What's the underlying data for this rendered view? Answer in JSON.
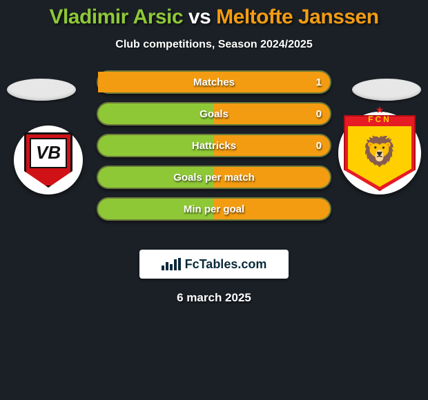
{
  "colors": {
    "bg": "#1b2026",
    "player1": "#8ec837",
    "player2": "#f39c12",
    "row_bg": "#353b27",
    "row_border": "#6c7a3a",
    "white": "#ffffff",
    "brand_text": "#0a2a3a"
  },
  "title": {
    "p1": "Vladimir Arsic",
    "vs": " vs ",
    "p2": "Meltofte Janssen",
    "fontsize": 30
  },
  "subtitle": "Club competitions, Season 2024/2025",
  "rows": [
    {
      "label": "Matches",
      "left": "",
      "right": "1",
      "left_pct": 0,
      "right_pct": 100
    },
    {
      "label": "Goals",
      "left": "",
      "right": "0",
      "left_pct": 50,
      "right_pct": 50
    },
    {
      "label": "Hattricks",
      "left": "",
      "right": "0",
      "left_pct": 50,
      "right_pct": 50
    },
    {
      "label": "Goals per match",
      "left": "",
      "right": "",
      "left_pct": 50,
      "right_pct": 50
    },
    {
      "label": "Min per goal",
      "left": "",
      "right": "",
      "left_pct": 50,
      "right_pct": 50
    }
  ],
  "row_style": {
    "height": 34,
    "gap": 12,
    "radius": 17,
    "label_fontsize": 15
  },
  "clubs": {
    "left": {
      "name": "VB",
      "colors": {
        "shield": "#d01217",
        "border": "#111111",
        "panel": "#ffffff"
      }
    },
    "right": {
      "name": "FCN",
      "colors": {
        "shield": "#e71b24",
        "inner": "#ffcf00",
        "text": "#ffcf00"
      }
    }
  },
  "brand": "FcTables.com",
  "date": "6 march 2025"
}
